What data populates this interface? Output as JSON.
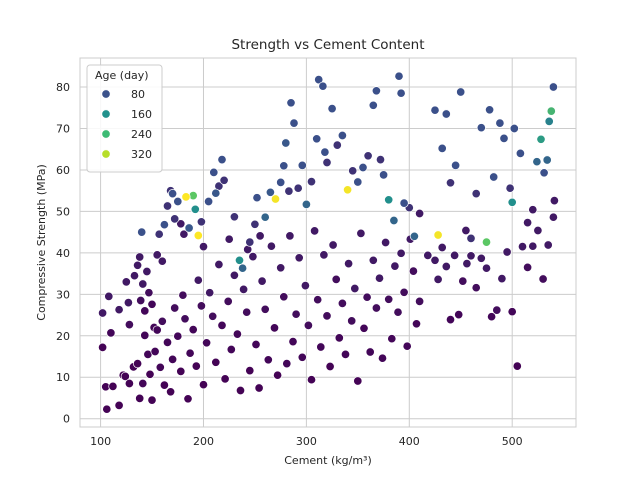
{
  "chart_data": {
    "type": "scatter",
    "title": "Strength vs Cement Content",
    "xlabel": "Cement (kg/m³)",
    "ylabel": "Compressive Strength (MPa)",
    "xlim": [
      80,
      562
    ],
    "ylim": [
      -2,
      87
    ],
    "xticks": [
      100,
      200,
      300,
      400,
      500
    ],
    "yticks": [
      0,
      10,
      20,
      30,
      40,
      50,
      60,
      70,
      80
    ],
    "grid": true,
    "legend": {
      "title": "Age (day)",
      "placement": "top-left",
      "entries": [
        {
          "label": "80",
          "value": 80,
          "color": "#3b528b"
        },
        {
          "label": "160",
          "value": 160,
          "color": "#21918c"
        },
        {
          "label": "240",
          "value": 240,
          "color": "#3dbb74"
        },
        {
          "label": "320",
          "value": 320,
          "color": "#b7de2a"
        }
      ]
    },
    "colormap": "viridis",
    "hue_range": [
      1,
      365
    ],
    "points": [
      [
        102,
        25.5,
        28
      ],
      [
        102,
        17.2,
        3
      ],
      [
        108,
        29.5,
        28
      ],
      [
        110,
        20.7,
        7
      ],
      [
        118,
        26.3,
        28
      ],
      [
        122,
        10.5,
        3
      ],
      [
        125,
        33,
        28
      ],
      [
        127,
        28,
        28
      ],
      [
        128,
        22.7,
        14
      ],
      [
        133,
        34.5,
        28
      ],
      [
        136,
        37,
        28
      ],
      [
        138,
        39,
        28
      ],
      [
        139,
        28.5,
        14
      ],
      [
        140,
        45,
        91
      ],
      [
        141,
        32.5,
        28
      ],
      [
        143,
        26,
        7
      ],
      [
        145,
        35.5,
        28
      ],
      [
        147,
        30.4,
        14
      ],
      [
        150,
        27.6,
        7
      ],
      [
        152,
        22,
        7
      ],
      [
        155,
        39.5,
        28
      ],
      [
        157,
        44.5,
        56
      ],
      [
        160,
        38,
        28
      ],
      [
        162,
        46.8,
        91
      ],
      [
        165,
        51.3,
        56
      ],
      [
        168,
        55,
        56
      ],
      [
        170,
        54.3,
        91
      ],
      [
        172,
        48.2,
        56
      ],
      [
        175,
        52.4,
        91
      ],
      [
        178,
        47,
        28
      ],
      [
        181,
        44.5,
        28
      ],
      [
        183,
        53.5,
        365
      ],
      [
        186,
        46,
        100
      ],
      [
        190,
        53.8,
        270
      ],
      [
        192,
        50.5,
        180
      ],
      [
        195,
        44.2,
        365
      ],
      [
        198,
        47.5,
        56
      ],
      [
        200,
        41.5,
        28
      ],
      [
        205,
        52.4,
        90
      ],
      [
        210,
        59.4,
        90
      ],
      [
        212,
        54.4,
        100
      ],
      [
        215,
        56.1,
        56
      ],
      [
        218,
        62.5,
        90
      ],
      [
        220,
        57.5,
        56
      ],
      [
        225,
        43.3,
        28
      ],
      [
        230,
        48.7,
        56
      ],
      [
        235,
        38.2,
        180
      ],
      [
        238,
        36.3,
        120
      ],
      [
        243,
        40.8,
        28
      ],
      [
        245,
        42.6,
        56
      ],
      [
        250,
        46.9,
        56
      ],
      [
        252,
        53.3,
        90
      ],
      [
        255,
        44.1,
        28
      ],
      [
        260,
        48.6,
        120
      ],
      [
        265,
        54.6,
        100
      ],
      [
        270,
        53,
        360
      ],
      [
        275,
        57,
        90
      ],
      [
        278,
        61,
        90
      ],
      [
        280,
        66.5,
        100
      ],
      [
        283,
        54.9,
        56
      ],
      [
        285,
        76.2,
        90
      ],
      [
        288,
        71.3,
        90
      ],
      [
        292,
        55.6,
        56
      ],
      [
        296,
        61.1,
        90
      ],
      [
        300,
        51.7,
        120
      ],
      [
        305,
        57.2,
        56
      ],
      [
        310,
        67.5,
        90
      ],
      [
        312,
        81.8,
        90
      ],
      [
        316,
        80.2,
        90
      ],
      [
        318,
        64.3,
        90
      ],
      [
        320,
        61.8,
        56
      ],
      [
        325,
        74.8,
        90
      ],
      [
        330,
        66,
        56
      ],
      [
        335,
        68.3,
        90
      ],
      [
        340,
        55.2,
        360
      ],
      [
        345,
        59.8,
        56
      ],
      [
        350,
        57.1,
        90
      ],
      [
        355,
        60.6,
        90
      ],
      [
        360,
        63.4,
        56
      ],
      [
        365,
        75.6,
        90
      ],
      [
        368,
        79.1,
        90
      ],
      [
        372,
        62.5,
        56
      ],
      [
        375,
        58.8,
        90
      ],
      [
        380,
        52.8,
        180
      ],
      [
        385,
        47.8,
        120
      ],
      [
        390,
        82.6,
        90
      ],
      [
        392,
        78.5,
        90
      ],
      [
        395,
        52,
        90
      ],
      [
        400,
        50.9,
        56
      ],
      [
        405,
        44,
        120
      ],
      [
        410,
        49.5,
        28
      ],
      [
        418,
        39.4,
        28
      ],
      [
        425,
        74.4,
        90
      ],
      [
        428,
        44.3,
        360
      ],
      [
        432,
        65.2,
        90
      ],
      [
        436,
        73.5,
        90
      ],
      [
        440,
        56.9,
        56
      ],
      [
        445,
        61.1,
        90
      ],
      [
        450,
        78.8,
        90
      ],
      [
        455,
        45.4,
        28
      ],
      [
        460,
        39.3,
        28
      ],
      [
        465,
        54.3,
        56
      ],
      [
        470,
        70.2,
        90
      ],
      [
        475,
        42.6,
        270
      ],
      [
        478,
        74.5,
        90
      ],
      [
        482,
        58.3,
        90
      ],
      [
        488,
        71.3,
        90
      ],
      [
        492,
        67.6,
        90
      ],
      [
        498,
        55.6,
        56
      ],
      [
        500,
        52.2,
        180
      ],
      [
        502,
        70,
        90
      ],
      [
        508,
        64,
        90
      ],
      [
        515,
        47.3,
        28
      ],
      [
        520,
        50.4,
        28
      ],
      [
        524,
        62,
        120
      ],
      [
        528,
        67.4,
        200
      ],
      [
        531,
        59.3,
        90
      ],
      [
        534,
        62.4,
        120
      ],
      [
        536,
        71.7,
        160
      ],
      [
        538,
        74.2,
        240
      ],
      [
        540,
        80,
        90
      ],
      [
        541,
        52.6,
        28
      ],
      [
        105,
        7.7,
        3
      ],
      [
        106,
        2.3,
        3
      ],
      [
        112,
        7.8,
        3
      ],
      [
        118,
        3.2,
        3
      ],
      [
        124,
        10.2,
        3
      ],
      [
        128,
        8.5,
        3
      ],
      [
        132,
        12.5,
        3
      ],
      [
        136,
        13.3,
        3
      ],
      [
        138,
        4.9,
        3
      ],
      [
        141,
        8.5,
        7
      ],
      [
        143,
        20.1,
        7
      ],
      [
        146,
        15.5,
        7
      ],
      [
        148,
        10.7,
        3
      ],
      [
        150,
        4.5,
        3
      ],
      [
        153,
        16.2,
        7
      ],
      [
        155,
        21.4,
        7
      ],
      [
        158,
        12.4,
        7
      ],
      [
        160,
        23.5,
        14
      ],
      [
        162,
        8.1,
        3
      ],
      [
        165,
        18.4,
        7
      ],
      [
        168,
        6.5,
        3
      ],
      [
        170,
        14.3,
        7
      ],
      [
        172,
        26.7,
        14
      ],
      [
        175,
        19.9,
        7
      ],
      [
        178,
        11.4,
        3
      ],
      [
        180,
        29.8,
        14
      ],
      [
        182,
        24.1,
        14
      ],
      [
        185,
        4.8,
        3
      ],
      [
        187,
        15.8,
        7
      ],
      [
        190,
        21.5,
        7
      ],
      [
        193,
        12.7,
        3
      ],
      [
        195,
        33.4,
        28
      ],
      [
        198,
        27.2,
        14
      ],
      [
        200,
        8.2,
        3
      ],
      [
        203,
        18.3,
        7
      ],
      [
        206,
        30.4,
        28
      ],
      [
        209,
        24.7,
        14
      ],
      [
        212,
        13.6,
        3
      ],
      [
        215,
        37.2,
        28
      ],
      [
        218,
        22.5,
        7
      ],
      [
        221,
        9.6,
        3
      ],
      [
        224,
        28.3,
        14
      ],
      [
        227,
        16.7,
        7
      ],
      [
        230,
        34.6,
        28
      ],
      [
        233,
        20.4,
        7
      ],
      [
        236,
        6.8,
        3
      ],
      [
        239,
        31.2,
        28
      ],
      [
        242,
        25.7,
        14
      ],
      [
        245,
        11.6,
        3
      ],
      [
        248,
        39.1,
        28
      ],
      [
        251,
        17.9,
        7
      ],
      [
        254,
        7.4,
        3
      ],
      [
        257,
        33.2,
        28
      ],
      [
        260,
        26.4,
        14
      ],
      [
        263,
        14.2,
        7
      ],
      [
        266,
        41.6,
        28
      ],
      [
        269,
        21.9,
        7
      ],
      [
        272,
        10.5,
        3
      ],
      [
        275,
        36.4,
        28
      ],
      [
        278,
        29.4,
        14
      ],
      [
        281,
        13.3,
        7
      ],
      [
        284,
        44.1,
        28
      ],
      [
        287,
        18.6,
        7
      ],
      [
        290,
        25.2,
        14
      ],
      [
        293,
        38.8,
        28
      ],
      [
        296,
        14.8,
        7
      ],
      [
        299,
        32.1,
        28
      ],
      [
        302,
        22.5,
        14
      ],
      [
        305,
        9.4,
        3
      ],
      [
        308,
        45.3,
        28
      ],
      [
        311,
        28.7,
        14
      ],
      [
        314,
        17.3,
        7
      ],
      [
        317,
        39.5,
        28
      ],
      [
        320,
        24.8,
        14
      ],
      [
        323,
        12.6,
        3
      ],
      [
        326,
        41.9,
        28
      ],
      [
        329,
        33.6,
        14
      ],
      [
        332,
        19.5,
        7
      ],
      [
        335,
        27.8,
        14
      ],
      [
        338,
        15.5,
        7
      ],
      [
        341,
        37.4,
        28
      ],
      [
        344,
        23.6,
        14
      ],
      [
        347,
        31.4,
        28
      ],
      [
        350,
        9.1,
        3
      ],
      [
        353,
        44.7,
        28
      ],
      [
        356,
        21.8,
        7
      ],
      [
        359,
        29.3,
        14
      ],
      [
        362,
        16.1,
        7
      ],
      [
        365,
        38.2,
        28
      ],
      [
        368,
        26.7,
        14
      ],
      [
        371,
        33.9,
        28
      ],
      [
        374,
        14.6,
        7
      ],
      [
        377,
        42.5,
        28
      ],
      [
        380,
        28.8,
        14
      ],
      [
        383,
        19.3,
        7
      ],
      [
        386,
        36.8,
        28
      ],
      [
        389,
        25.7,
        14
      ],
      [
        392,
        39.9,
        28
      ],
      [
        395,
        30.5,
        14
      ],
      [
        398,
        17.5,
        7
      ],
      [
        401,
        43.3,
        28
      ],
      [
        404,
        35.6,
        14
      ],
      [
        407,
        22.9,
        7
      ],
      [
        410,
        28.3,
        14
      ],
      [
        425,
        38.2,
        28
      ],
      [
        428,
        33.6,
        28
      ],
      [
        432,
        41.3,
        28
      ],
      [
        436,
        36.7,
        28
      ],
      [
        440,
        23.9,
        7
      ],
      [
        444,
        39.4,
        28
      ],
      [
        448,
        25.1,
        7
      ],
      [
        452,
        33.2,
        14
      ],
      [
        456,
        37.4,
        28
      ],
      [
        460,
        43.5,
        56
      ],
      [
        465,
        31.6,
        14
      ],
      [
        470,
        38.7,
        28
      ],
      [
        475,
        36.3,
        28
      ],
      [
        480,
        24.6,
        7
      ],
      [
        485,
        26.2,
        14
      ],
      [
        490,
        33.8,
        28
      ],
      [
        495,
        40.2,
        28
      ],
      [
        500,
        25.8,
        7
      ],
      [
        505,
        12.7,
        3
      ],
      [
        510,
        41.5,
        28
      ],
      [
        515,
        36.5,
        14
      ],
      [
        520,
        41.6,
        28
      ],
      [
        525,
        45.4,
        28
      ],
      [
        530,
        33.7,
        14
      ],
      [
        535,
        41.9,
        28
      ],
      [
        540,
        48.6,
        28
      ]
    ]
  }
}
